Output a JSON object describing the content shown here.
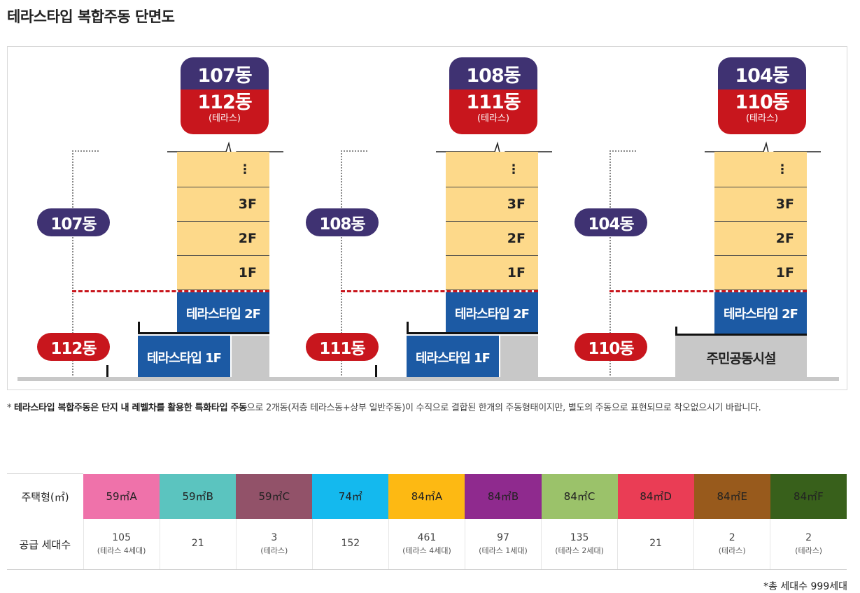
{
  "title": "테라스타입 복합주동 단면도",
  "buildings": [
    {
      "upper": "107동",
      "lower": "112동",
      "card_upper": "107동",
      "card_lower": "112동",
      "card_sub": "(테라스)",
      "floors": [
        "⋮",
        "3F",
        "2F",
        "1F"
      ],
      "terrace2": "테라스타입 2F",
      "terrace1": "테라스타입 1F"
    },
    {
      "upper": "108동",
      "lower": "111동",
      "card_upper": "108동",
      "card_lower": "111동",
      "card_sub": "(테라스)",
      "floors": [
        "⋮",
        "3F",
        "2F",
        "1F"
      ],
      "terrace2": "테라스타입 2F",
      "terrace1": "테라스타입 1F"
    },
    {
      "upper": "104동",
      "lower": "110동",
      "card_upper": "104동",
      "card_lower": "110동",
      "card_sub": "(테라스)",
      "floors": [
        "⋮",
        "3F",
        "2F",
        "1F"
      ],
      "terrace2": "테라스타입 2F",
      "community": "주민공동시설"
    }
  ],
  "note": {
    "prefix": "* ",
    "bold": "테라스타입 복합주동은 단지 내 레벨차를 활용한 특화타입 주동",
    "rest": "으로 2개동(저층 테라스동+상부 일반주동)이 수직으로 결합된 한개의 주동형태이지만, 별도의 주동으로 표현되므로 착오없으시기 바랍니다."
  },
  "table": {
    "type_label": "주택형(㎡)",
    "supply_label": "공급 세대수",
    "columns": [
      {
        "type": "59㎡A",
        "color": "#ef72aa",
        "count": "105",
        "sub": "(테라스 4세대)"
      },
      {
        "type": "59㎡B",
        "color": "#5bc4bf",
        "count": "21",
        "sub": ""
      },
      {
        "type": "59㎡C",
        "color": "#925269",
        "count": "3",
        "sub": "(테라스)"
      },
      {
        "type": "74㎡",
        "color": "#14b9ee",
        "count": "152",
        "sub": ""
      },
      {
        "type": "84㎡A",
        "color": "#fdb913",
        "count": "461",
        "sub": "(테라스 4세대)"
      },
      {
        "type": "84㎡B",
        "color": "#8f2a8e",
        "count": "97",
        "sub": "(테라스 1세대)"
      },
      {
        "type": "84㎡C",
        "color": "#9bc26a",
        "count": "135",
        "sub": "(테라스 2세대)"
      },
      {
        "type": "84㎡D",
        "color": "#ea3d55",
        "count": "21",
        "sub": ""
      },
      {
        "type": "84㎡E",
        "color": "#985a1c",
        "count": "2",
        "sub": "(테라스)"
      },
      {
        "type": "84㎡F",
        "color": "#38601b",
        "count": "2",
        "sub": "(테라스)"
      }
    ],
    "total": "*총 세대수 999세대"
  }
}
